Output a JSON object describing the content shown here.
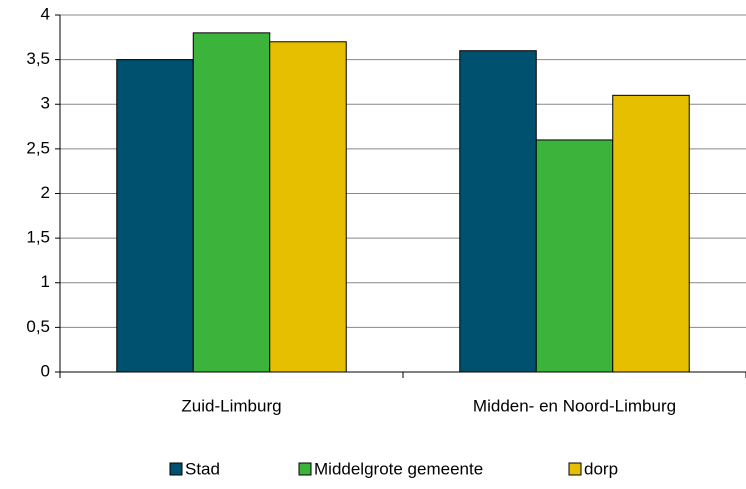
{
  "chart_data": {
    "type": "bar",
    "categories": [
      "Zuid-Limburg",
      "Midden- en Noord-Limburg"
    ],
    "series": [
      {
        "name": "Stad",
        "color": "#00506f",
        "values": [
          3.5,
          3.6
        ]
      },
      {
        "name": "Middelgrote gemeente",
        "color": "#3cb43c",
        "values": [
          3.8,
          2.6
        ]
      },
      {
        "name": "dorp",
        "color": "#e6bf00",
        "values": [
          3.7,
          3.1
        ]
      }
    ],
    "ylim": [
      0,
      4
    ],
    "yticks": [
      0,
      {
        "value": 0.5,
        "label": "0,5"
      },
      1,
      {
        "value": 1.5,
        "label": "1,5"
      },
      2,
      {
        "value": 2.5,
        "label": "2,5"
      },
      3,
      {
        "value": 3.5,
        "label": "3,5"
      },
      4
    ],
    "grid": true,
    "legend": "bottom"
  }
}
